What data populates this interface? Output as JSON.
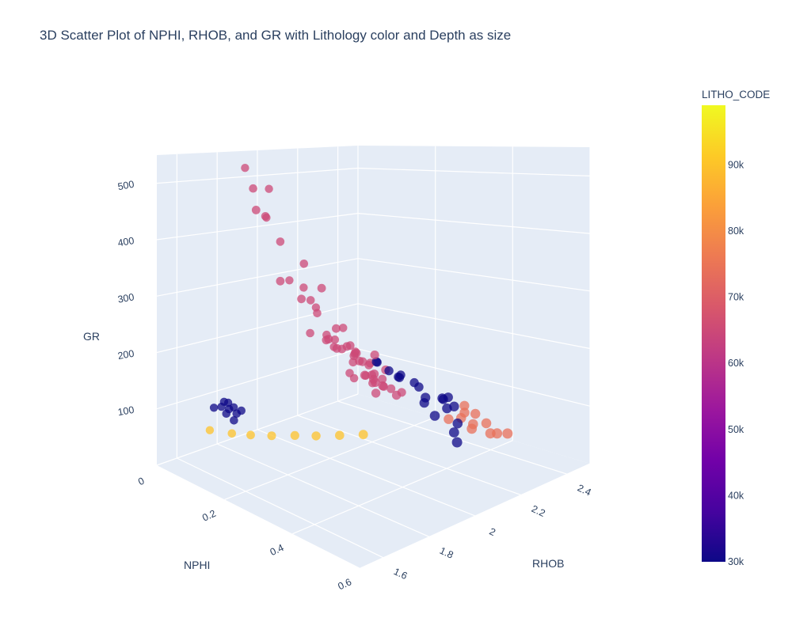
{
  "chart_data": {
    "type": "scatter3d",
    "title": "3D Scatter Plot of NPHI, RHOB, and GR with Lithology color and Depth as size",
    "axes": {
      "x": {
        "label": "RHOB",
        "ticks": [
          "1.6",
          "1.8",
          "2",
          "2.2",
          "2.4"
        ],
        "range": [
          1.5,
          2.5
        ]
      },
      "y": {
        "label": "NPHI",
        "ticks": [
          "0",
          "0.2",
          "0.4",
          "0.6"
        ],
        "range": [
          0,
          0.6
        ]
      },
      "z": {
        "label": "GR",
        "ticks": [
          "100",
          "200",
          "300",
          "400",
          "500"
        ],
        "range": [
          0,
          550
        ]
      }
    },
    "colorbar": {
      "title": "LITHO_CODE",
      "ticks": [
        "30k",
        "40k",
        "50k",
        "60k",
        "70k",
        "80k",
        "90k"
      ],
      "range": [
        30000,
        99000
      ],
      "colors": [
        "#0d0887",
        "#46039f",
        "#7201a8",
        "#9c179e",
        "#bd3786",
        "#d8576b",
        "#ed7953",
        "#fb9f3a",
        "#fdca26",
        "#f0f921"
      ]
    },
    "background": "#e5ecf6",
    "gridlines": true,
    "marker_opacity": 0.75,
    "series": [
      {
        "litho_code": 65000,
        "points": [
          [
            1.85,
            0.05,
            524
          ],
          [
            1.82,
            0.09,
            491
          ],
          [
            1.95,
            0.06,
            482
          ],
          [
            1.8,
            0.11,
            455
          ],
          [
            1.88,
            0.09,
            437
          ],
          [
            1.92,
            0.07,
            430
          ],
          [
            1.97,
            0.08,
            383
          ],
          [
            2.05,
            0.1,
            338
          ],
          [
            1.9,
            0.12,
            320
          ],
          [
            2.1,
            0.12,
            290
          ],
          [
            2.02,
            0.11,
            275
          ],
          [
            2.08,
            0.1,
            202
          ],
          [
            2.14,
            0.11,
            184
          ],
          [
            2.2,
            0.1,
            176
          ],
          [
            2.12,
            0.15,
            178
          ],
          [
            2.24,
            0.11,
            160
          ],
          [
            2.18,
            0.13,
            166
          ],
          [
            2.22,
            0.14,
            150
          ],
          [
            2.26,
            0.12,
            145
          ],
          [
            2.19,
            0.18,
            150
          ],
          [
            2.21,
            0.2,
            128
          ],
          [
            2.28,
            0.15,
            130
          ],
          [
            2.24,
            0.1,
            195
          ],
          [
            2.3,
            0.18,
            120
          ],
          [
            2.16,
            0.1,
            190
          ],
          [
            2.3,
            0.1,
            140
          ],
          [
            2.31,
            0.13,
            118
          ],
          [
            2.27,
            0.16,
            110
          ],
          [
            2.22,
            0.13,
            168
          ],
          [
            2.26,
            0.17,
            105
          ],
          [
            2.2,
            0.21,
            95
          ],
          [
            2.29,
            0.09,
            96
          ],
          [
            2.1,
            0.09,
            262
          ],
          [
            2.15,
            0.08,
            230
          ],
          [
            2.08,
            0.15,
            200
          ],
          [
            2.16,
            0.18,
            170
          ],
          [
            2.13,
            0.22,
            140
          ],
          [
            2.33,
            0.08,
            78
          ],
          [
            2.28,
            0.22,
            82
          ],
          [
            2.05,
            0.06,
            300
          ],
          [
            2.12,
            0.06,
            280
          ],
          [
            2.25,
            0.07,
            150
          ],
          [
            2.18,
            0.06,
            235
          ],
          [
            2.23,
            0.19,
            160
          ],
          [
            2.18,
            0.22,
            120
          ],
          [
            2.35,
            0.1,
            85
          ],
          [
            2.4,
            0.12,
            60
          ],
          [
            2.45,
            0.14,
            45
          ],
          [
            2.42,
            0.08,
            55
          ],
          [
            2.38,
            0.15,
            65
          ],
          [
            2.17,
            0.12,
            205
          ],
          [
            2.21,
            0.16,
            145
          ],
          [
            2.25,
            0.2,
            100
          ],
          [
            2.32,
            0.16,
            95
          ],
          [
            2.27,
            0.11,
            125
          ]
        ]
      },
      {
        "litho_code": 30000,
        "points": [
          [
            2.2,
            0.34,
            104
          ],
          [
            2.24,
            0.32,
            104
          ],
          [
            2.3,
            0.33,
            96
          ],
          [
            2.18,
            0.38,
            92
          ],
          [
            2.27,
            0.36,
            88
          ],
          [
            2.34,
            0.31,
            84
          ],
          [
            2.2,
            0.42,
            68
          ],
          [
            2.25,
            0.4,
            72
          ],
          [
            2.18,
            0.44,
            58
          ],
          [
            2.32,
            0.35,
            82
          ],
          [
            2.38,
            0.3,
            80
          ],
          [
            2.22,
            0.2,
            150
          ],
          [
            2.26,
            0.18,
            140
          ],
          [
            2.28,
            0.2,
            125
          ],
          [
            2.3,
            0.22,
            118
          ],
          [
            2.33,
            0.2,
            105
          ],
          [
            2.36,
            0.18,
            98
          ],
          [
            2.35,
            0.24,
            92
          ],
          [
            2.4,
            0.2,
            85
          ],
          [
            1.73,
            0.06,
            103
          ],
          [
            1.7,
            0.07,
            100
          ],
          [
            1.76,
            0.07,
            92
          ],
          [
            1.72,
            0.08,
            96
          ],
          [
            1.68,
            0.06,
            98
          ],
          [
            1.74,
            0.09,
            88
          ],
          [
            1.71,
            0.1,
            82
          ],
          [
            1.78,
            0.08,
            86
          ],
          [
            1.69,
            0.09,
            94
          ],
          [
            1.75,
            0.06,
            99
          ]
        ]
      },
      {
        "litho_code": 74000,
        "points": [
          [
            2.3,
            0.38,
            70
          ],
          [
            2.35,
            0.36,
            68
          ],
          [
            2.32,
            0.4,
            60
          ],
          [
            2.38,
            0.4,
            52
          ],
          [
            2.36,
            0.44,
            45
          ],
          [
            2.4,
            0.36,
            58
          ],
          [
            2.28,
            0.42,
            62
          ],
          [
            2.33,
            0.44,
            50
          ],
          [
            2.42,
            0.32,
            62
          ],
          [
            2.26,
            0.37,
            72
          ],
          [
            2.39,
            0.45,
            42
          ]
        ]
      },
      {
        "litho_code": 90000,
        "points": [
          [
            1.66,
            0.06,
            60
          ],
          [
            1.7,
            0.1,
            60
          ],
          [
            1.74,
            0.13,
            60
          ],
          [
            1.79,
            0.16,
            60
          ],
          [
            1.85,
            0.19,
            60
          ],
          [
            1.9,
            0.22,
            60
          ],
          [
            1.96,
            0.25,
            60
          ],
          [
            2.02,
            0.28,
            60
          ]
        ]
      }
    ]
  }
}
